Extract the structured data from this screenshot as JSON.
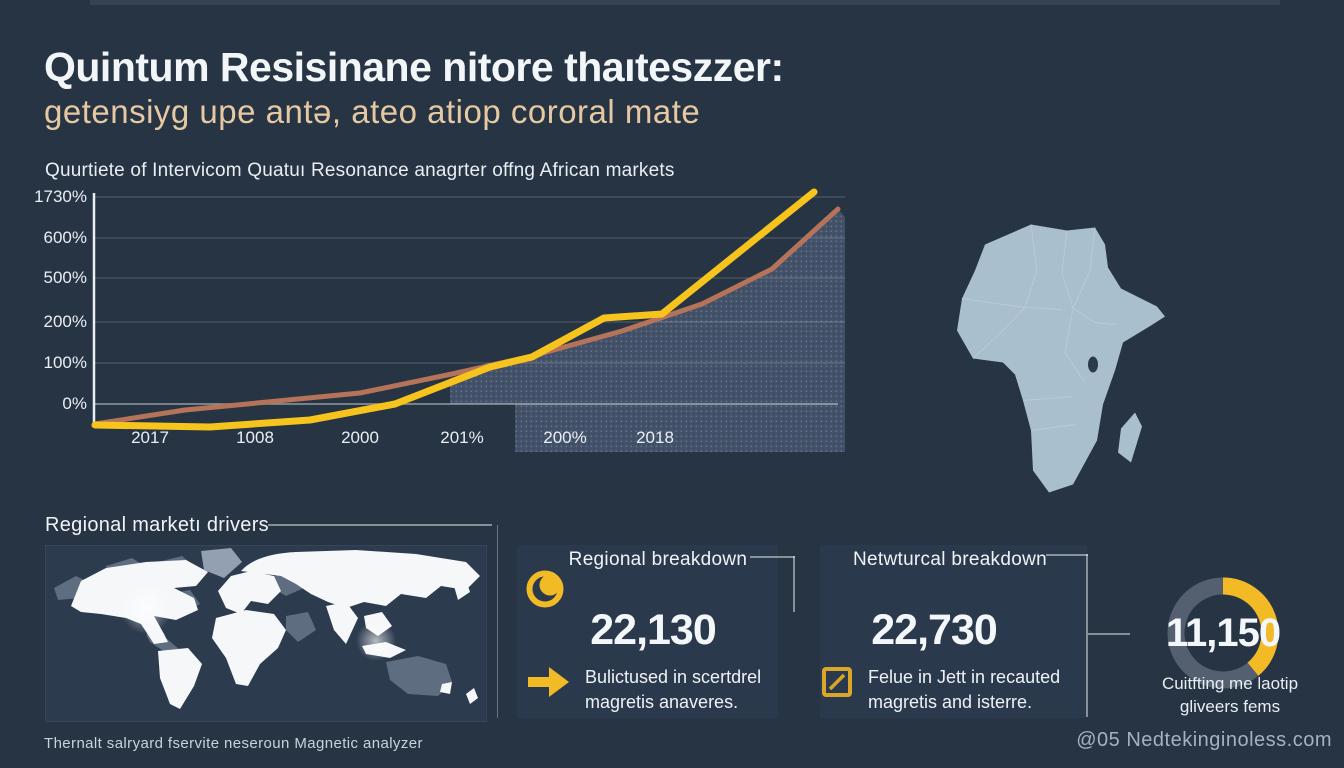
{
  "page": {
    "title": "Quintum Resisinane nitore thaıteszzer:",
    "subtitle": "getensiyg upe antə, ateo atiop cororal mate",
    "footer_left": "Thernalt salryard fservite neseroun Magnetic analyzer",
    "footer_right": "@05 Nedtekinginoless.com"
  },
  "colors": {
    "background": "#263444",
    "panel": "#2d3b4f",
    "accent_yellow": "#f2ba25",
    "line_yellow": "#f7c31d",
    "line_salmon": "#b5735a",
    "subtitle_tan": "#e6c8a2",
    "africa_map_fill": "#a9bfce",
    "donut_track": "#545f70",
    "area_fill_base": "#45546c",
    "area_fill_dot": "#7e8ca1"
  },
  "chart_data": {
    "type": "line",
    "title": "Quurtiete of Intervicom Quatuı Resonance anagrter offng African markets",
    "y_ticks": [
      "1730%",
      "600%",
      "500%",
      "200%",
      "100%",
      "0%"
    ],
    "x_ticks": [
      "2017",
      "1008",
      "2000",
      "201%",
      "200%",
      "2018"
    ],
    "grid": true,
    "legend": "none",
    "series": [
      {
        "name": "yellow-growth-line",
        "color": "#f7c31d",
        "width": 7,
        "approx_values_pct_at_x_ticks": [
          -40,
          -40,
          -25,
          60,
          150,
          210
        ],
        "end_value_pct": 1730,
        "pixel_points": "95,425 210,427 310,420 395,404 490,367 532,357 604,318 662,314 814,192"
      },
      {
        "name": "salmon-growth-line",
        "color": "#b5735a",
        "width": 5,
        "approx_values_pct_at_x_ticks": [
          -15,
          0,
          25,
          80,
          130,
          190
        ],
        "end_value_pct": 1600,
        "pixel_points": "95,424 185,410 360,393 452,374 532,356 622,331 702,304 772,269 838,209"
      }
    ],
    "area_pixel_points": "450,378 532,356 622,331 702,304 772,269 838,209 845,217 845,452 515,452 515,404 450,404"
  },
  "regional_section": {
    "heading": "Regional marketı drivers"
  },
  "stats_cards": [
    {
      "icon": "crescent-icon",
      "heading": "Regional breakdown",
      "value": "22,130",
      "desc_line1": "Bulictused in scertdrel",
      "desc_line2": "magretis anaveres."
    },
    {
      "icon": "edit-square-icon",
      "heading": "Netwturcal breakdown",
      "value": "22,730",
      "desc_line1": "Felue in Jett in recauted",
      "desc_line2": "magretis and isterre."
    }
  ],
  "donut": {
    "type": "donut",
    "value": "11,150",
    "fraction_filled": 0.39,
    "caption_line1": "Cuitfting me laotip",
    "caption_line2": "gliveers fems"
  }
}
